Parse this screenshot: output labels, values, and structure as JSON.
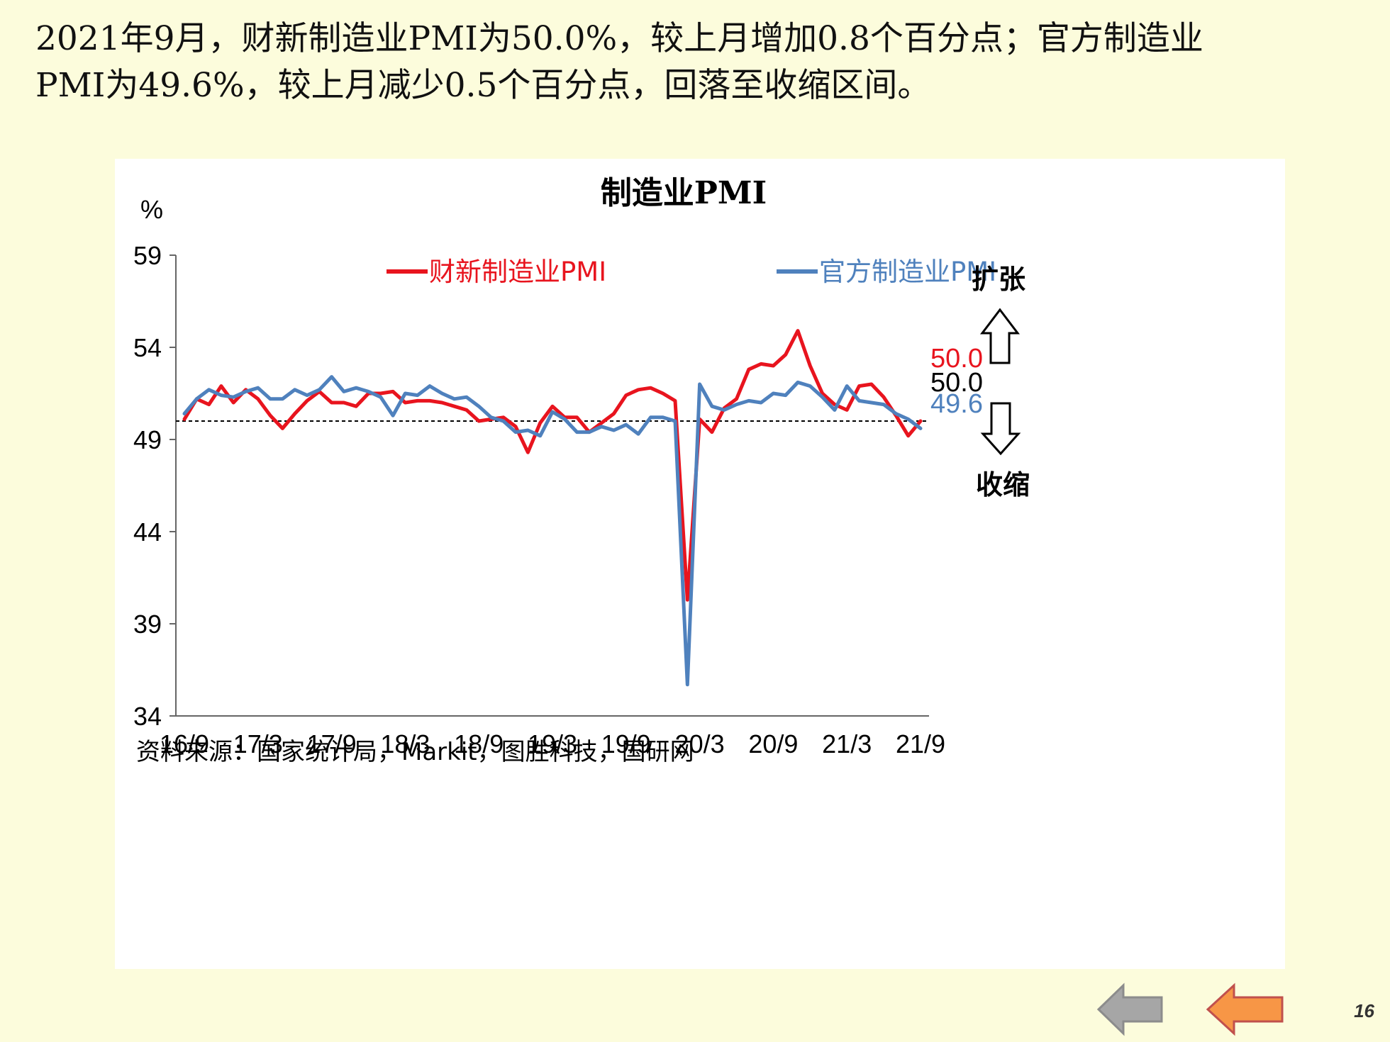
{
  "headline": {
    "line1": "2021年9月，财新制造业PMI为50.0%，较上月增加0.8个百分点；官方制造业",
    "line2": "PMI为49.6%，较上月减少0.5个百分点，回落至收缩区间。"
  },
  "page_number": "16",
  "source_note": "资料来源：国家统计局，Markit，图胜科技，国研网",
  "labels": {
    "expansion": "扩张",
    "contraction": "收缩",
    "caixin_last": "50.0",
    "threshold": "50.0",
    "official_last": "49.6"
  },
  "colors": {
    "caixin": "#e8141e",
    "official": "#4f81bd",
    "page_bg": "#fcfcdc",
    "nav_back": "#a6a6a6",
    "nav_prev": "#f79646"
  },
  "icons": {
    "expansion": "up-arrow-outline-icon",
    "contraction": "down-arrow-outline-icon",
    "nav_back": "left-arrow-gray-icon",
    "nav_prev": "left-arrow-orange-icon"
  },
  "chart_data": {
    "type": "line",
    "title": "制造业PMI",
    "ylabel": "%",
    "ylim": [
      34,
      59
    ],
    "yticks": [
      59,
      54,
      49,
      44,
      39,
      34
    ],
    "x_ticks": [
      "16/9",
      "17/3",
      "17/9",
      "18/3",
      "18/9",
      "19/3",
      "19/9",
      "20/3",
      "20/9",
      "21/3",
      "21/9"
    ],
    "reference_line": 50.0,
    "grid": false,
    "legend": "top",
    "series": [
      {
        "name": "财新制造业PMI",
        "values": [
          50.1,
          51.2,
          50.9,
          51.9,
          51.0,
          51.7,
          51.2,
          50.3,
          49.6,
          50.4,
          51.1,
          51.6,
          51.0,
          51.0,
          50.8,
          51.5,
          51.5,
          51.6,
          51.0,
          51.1,
          51.1,
          51.0,
          50.8,
          50.6,
          50.0,
          50.1,
          50.2,
          49.7,
          48.3,
          49.9,
          50.8,
          50.2,
          50.2,
          49.4,
          49.9,
          50.4,
          51.4,
          51.7,
          51.8,
          51.5,
          51.1,
          40.3,
          50.1,
          49.4,
          50.7,
          51.2,
          52.8,
          53.1,
          53.0,
          53.6,
          54.9,
          53.0,
          51.5,
          50.9,
          50.6,
          51.9,
          52.0,
          51.3,
          50.3,
          49.2,
          50.0
        ]
      },
      {
        "name": "官方制造业PMI",
        "values": [
          50.4,
          51.2,
          51.7,
          51.4,
          51.3,
          51.6,
          51.8,
          51.2,
          51.2,
          51.7,
          51.4,
          51.7,
          52.4,
          51.6,
          51.8,
          51.6,
          51.3,
          50.3,
          51.5,
          51.4,
          51.9,
          51.5,
          51.2,
          51.3,
          50.8,
          50.2,
          50.0,
          49.4,
          49.5,
          49.2,
          50.5,
          50.1,
          49.4,
          49.4,
          49.7,
          49.5,
          49.8,
          49.3,
          50.2,
          50.2,
          50.0,
          35.7,
          52.0,
          50.8,
          50.6,
          50.9,
          51.1,
          51.0,
          51.5,
          51.4,
          52.1,
          51.9,
          51.3,
          50.6,
          51.9,
          51.1,
          51.0,
          50.9,
          50.4,
          50.1,
          49.6
        ]
      }
    ]
  }
}
